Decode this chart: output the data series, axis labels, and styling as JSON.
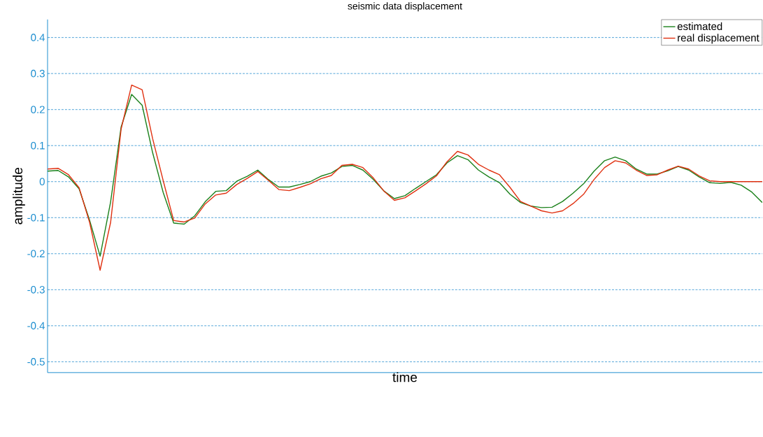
{
  "chart_data": {
    "type": "line",
    "title": "seismic data displacement",
    "xlabel": "time",
    "ylabel": "amplitude",
    "categories": [
      null,
      null,
      null,
      null,
      null,
      null,
      null,
      null,
      null,
      null,
      null,
      null,
      null,
      null,
      null,
      null,
      null,
      null,
      null,
      null,
      null,
      null,
      null,
      null,
      null,
      null,
      null,
      null,
      null,
      null,
      null,
      null,
      null,
      null,
      null,
      null,
      null,
      null,
      null,
      null,
      null,
      null,
      null,
      null,
      null,
      null,
      null,
      null,
      null,
      null,
      null,
      null,
      null,
      null,
      null,
      null,
      null,
      null,
      null,
      null,
      null,
      null,
      null,
      null,
      null,
      null,
      null,
      null,
      null
    ],
    "series": [
      {
        "name": "estimated",
        "color": "#1a801a",
        "values": [
          0.029,
          0.031,
          0.013,
          -0.02,
          -0.107,
          -0.207,
          -0.056,
          0.152,
          0.242,
          0.212,
          0.08,
          -0.03,
          -0.115,
          -0.118,
          -0.095,
          -0.056,
          -0.027,
          -0.025,
          0.001,
          0.015,
          0.032,
          0.006,
          -0.015,
          -0.015,
          -0.008,
          0.0,
          0.015,
          0.024,
          0.042,
          0.045,
          0.032,
          0.006,
          -0.026,
          -0.047,
          -0.039,
          -0.019,
          0.0,
          0.019,
          0.052,
          0.072,
          0.061,
          0.032,
          0.013,
          -0.003,
          -0.035,
          -0.058,
          -0.068,
          -0.072,
          -0.071,
          -0.055,
          -0.032,
          -0.006,
          0.029,
          0.058,
          0.068,
          0.058,
          0.035,
          0.021,
          0.021,
          0.03,
          0.042,
          0.032,
          0.013,
          -0.003,
          -0.005,
          -0.002,
          -0.01,
          -0.029,
          -0.058
        ]
      },
      {
        "name": "real displacement",
        "color": "#e03010",
        "values": [
          0.035,
          0.037,
          0.019,
          -0.017,
          -0.113,
          -0.246,
          -0.113,
          0.146,
          0.268,
          0.255,
          0.119,
          0.003,
          -0.108,
          -0.112,
          -0.101,
          -0.062,
          -0.037,
          -0.032,
          -0.008,
          0.009,
          0.028,
          0.004,
          -0.022,
          -0.025,
          -0.016,
          -0.006,
          0.008,
          0.017,
          0.045,
          0.048,
          0.039,
          0.01,
          -0.026,
          -0.052,
          -0.045,
          -0.026,
          -0.006,
          0.016,
          0.055,
          0.084,
          0.074,
          0.048,
          0.032,
          0.019,
          -0.016,
          -0.055,
          -0.068,
          -0.081,
          -0.087,
          -0.081,
          -0.061,
          -0.035,
          0.006,
          0.039,
          0.058,
          0.052,
          0.032,
          0.017,
          0.019,
          0.032,
          0.043,
          0.035,
          0.016,
          0.002,
          0.0,
          0.0,
          0.0,
          0.0,
          0.0
        ]
      }
    ],
    "ylim": [
      -0.53,
      0.45
    ],
    "yticks": [
      -0.5,
      -0.4,
      -0.3,
      -0.2,
      -0.1,
      0,
      0.1,
      0.2,
      0.3,
      0.4
    ],
    "grid": "y",
    "legend": "top right",
    "tick_labels": "y",
    "marker": "none",
    "line_style": "solid"
  }
}
